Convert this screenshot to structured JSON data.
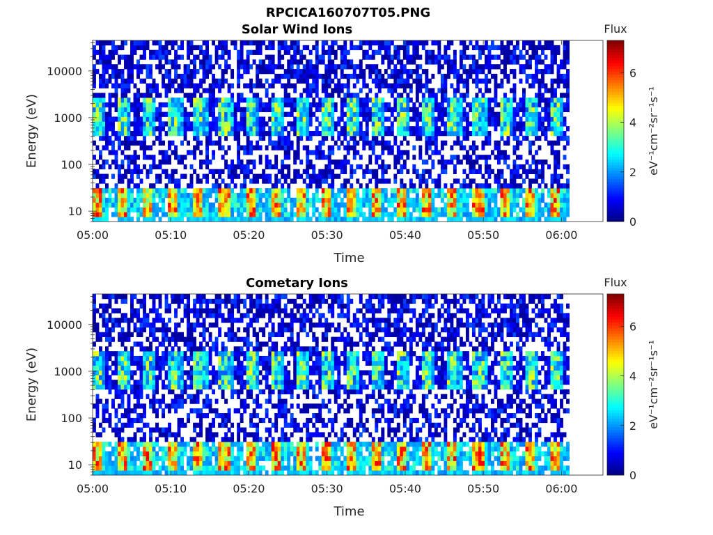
{
  "figure_title": "RPCICA160707T05.PNG",
  "colorbar_title": "Flux",
  "colorbar_unit": "eV⁻¹cm⁻²sr⁻¹s⁻¹",
  "chart_data": [
    {
      "type": "heatmap",
      "title": "Solar Wind Ions",
      "xlabel": "Time",
      "ylabel": "Energy (eV)",
      "y_scale": "log",
      "ylim": [
        6,
        45000
      ],
      "xlim": [
        "05:00",
        "06:03"
      ],
      "x_ticks": [
        "05:00",
        "05:10",
        "05:20",
        "05:30",
        "05:40",
        "05:50",
        "06:00"
      ],
      "y_ticks": [
        "10",
        "100",
        "1000",
        "10000"
      ],
      "colorbar": {
        "label": "Flux",
        "range": [
          0,
          7.3
        ],
        "ticks": [
          "0",
          "2",
          "4",
          "6"
        ],
        "colormap": "jet"
      },
      "bands": [
        {
          "energy_range_eV": [
            6,
            30
          ],
          "typical_flux": [
            2,
            6.5
          ],
          "pattern": "periodic bursts ~ every 3.2 min"
        },
        {
          "energy_range_eV": [
            400,
            2500
          ],
          "typical_flux": [
            1.5,
            4.5
          ],
          "pattern": "periodic bursts ~ every 3.2 min"
        },
        {
          "energy_range_eV": [
            30,
            45000
          ],
          "typical_flux": [
            0,
            1.5
          ],
          "pattern": "sparse background"
        }
      ]
    },
    {
      "type": "heatmap",
      "title": "Cometary Ions",
      "xlabel": "Time",
      "ylabel": "Energy (eV)",
      "y_scale": "log",
      "ylim": [
        6,
        45000
      ],
      "xlim": [
        "05:00",
        "06:03"
      ],
      "x_ticks": [
        "05:00",
        "05:10",
        "05:20",
        "05:30",
        "05:40",
        "05:50",
        "06:00"
      ],
      "y_ticks": [
        "10",
        "100",
        "1000",
        "10000"
      ],
      "colorbar": {
        "label": "Flux",
        "range": [
          0,
          7.3
        ],
        "ticks": [
          "0",
          "2",
          "4",
          "6"
        ],
        "colormap": "jet"
      },
      "bands": [
        {
          "energy_range_eV": [
            6,
            30
          ],
          "typical_flux": [
            2,
            6.5
          ],
          "pattern": "periodic bursts ~ every 3.2 min"
        },
        {
          "energy_range_eV": [
            400,
            2500
          ],
          "typical_flux": [
            1.5,
            4.5
          ],
          "pattern": "periodic bursts ~ every 3.2 min"
        },
        {
          "energy_range_eV": [
            30,
            45000
          ],
          "typical_flux": [
            0,
            1.5
          ],
          "pattern": "sparse background"
        }
      ]
    }
  ]
}
